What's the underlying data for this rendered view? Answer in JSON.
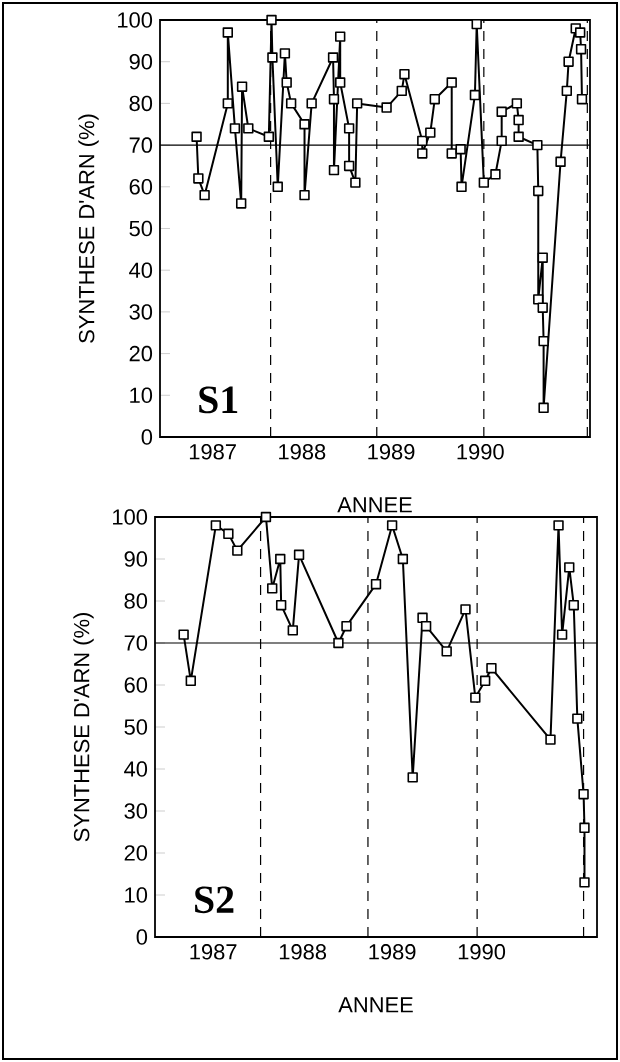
{
  "chart_data": [
    {
      "type": "line",
      "xlabel": "ANNEE",
      "ylabel": "SYNTHESE D'ARN (%)",
      "annotations": [
        "S1"
      ],
      "marker": "square",
      "line_style": "solid",
      "grid": false,
      "xlim": [
        1986.41,
        1991.23
      ],
      "ylim": [
        0,
        100
      ],
      "xticks": [
        1987,
        1988,
        1989,
        1990
      ],
      "yticks": [
        0,
        10,
        20,
        30,
        40,
        50,
        60,
        70,
        80,
        90,
        100
      ],
      "ref_lines": [
        {
          "axis": "y",
          "value": 70,
          "line_style": "solid"
        },
        {
          "axis": "x",
          "value": 1987.65,
          "line_style": "dashed"
        },
        {
          "axis": "x",
          "value": 1988.84,
          "line_style": "dashed"
        },
        {
          "axis": "x",
          "value": 1990.04,
          "line_style": "dashed"
        },
        {
          "axis": "x",
          "value": 1991.2,
          "line_style": "dashed"
        }
      ],
      "series": [
        {
          "color": "#000000",
          "x": [
            1986.82,
            1986.84,
            1986.91,
            1987.17,
            1987.17,
            1987.25,
            1987.32,
            1987.33,
            1987.4,
            1987.63,
            1987.66,
            1987.67,
            1987.73,
            1987.81,
            1987.83,
            1987.88,
            1988.03,
            1988.03,
            1988.11,
            1988.35,
            1988.36,
            1988.36,
            1988.43,
            1988.43,
            1988.53,
            1988.53,
            1988.6,
            1988.62,
            1988.95,
            1989.12,
            1989.15,
            1989.35,
            1989.35,
            1989.44,
            1989.49,
            1989.68,
            1989.68,
            1989.78,
            1989.79,
            1989.94,
            1989.96,
            1990.04,
            1990.17,
            1990.24,
            1990.24,
            1990.41,
            1990.43,
            1990.43,
            1990.64,
            1990.65,
            1990.65,
            1990.7,
            1990.7,
            1990.71,
            1990.71,
            1990.9,
            1990.97,
            1990.99,
            1991.07,
            1991.12,
            1991.13,
            1991.14
          ],
          "values": [
            72,
            62,
            58,
            80,
            97,
            74,
            56,
            84,
            74,
            72,
            100,
            91,
            60,
            92,
            85,
            80,
            75,
            58,
            80,
            91,
            81,
            64,
            96,
            85,
            74,
            65,
            61,
            80,
            79,
            83,
            87,
            71,
            68,
            73,
            81,
            85,
            68,
            69,
            60,
            82,
            99,
            61,
            63,
            71,
            78,
            80,
            76,
            72,
            70,
            59,
            33,
            43,
            31,
            23,
            7,
            66,
            83,
            90,
            98,
            97,
            93,
            81
          ]
        }
      ]
    },
    {
      "type": "line",
      "xlabel": "ANNEE",
      "ylabel": "SYNTHESE D'ARN (%)",
      "annotations": [
        "S2"
      ],
      "marker": "square",
      "line_style": "solid",
      "grid": false,
      "xlim": [
        1986.35,
        1991.29
      ],
      "ylim": [
        0,
        100
      ],
      "xticks": [
        1987,
        1988,
        1989,
        1990
      ],
      "yticks": [
        0,
        10,
        20,
        30,
        40,
        50,
        60,
        70,
        80,
        90,
        100
      ],
      "ref_lines": [
        {
          "axis": "y",
          "value": 70,
          "line_style": "solid"
        },
        {
          "axis": "x",
          "value": 1987.53,
          "line_style": "dashed"
        },
        {
          "axis": "x",
          "value": 1988.73,
          "line_style": "dashed"
        },
        {
          "axis": "x",
          "value": 1989.95,
          "line_style": "dashed"
        },
        {
          "axis": "x",
          "value": 1991.14,
          "line_style": "dashed"
        }
      ],
      "series": [
        {
          "color": "#000000",
          "x": [
            1986.67,
            1986.75,
            1987.03,
            1987.17,
            1987.27,
            1987.59,
            1987.66,
            1987.75,
            1987.76,
            1987.89,
            1987.96,
            1988.4,
            1988.49,
            1988.82,
            1989.0,
            1989.12,
            1989.23,
            1989.34,
            1989.38,
            1989.61,
            1989.82,
            1989.93,
            1990.04,
            1990.11,
            1990.77,
            1990.86,
            1990.9,
            1990.98,
            1991.03,
            1991.07,
            1991.14,
            1991.15,
            1991.15
          ],
          "values": [
            72,
            61,
            98,
            96,
            92,
            100,
            83,
            90,
            79,
            73,
            91,
            70,
            74,
            84,
            98,
            90,
            38,
            76,
            74,
            68,
            78,
            57,
            61,
            64,
            47,
            98,
            72,
            88,
            79,
            52,
            34,
            26,
            13
          ]
        }
      ]
    }
  ]
}
